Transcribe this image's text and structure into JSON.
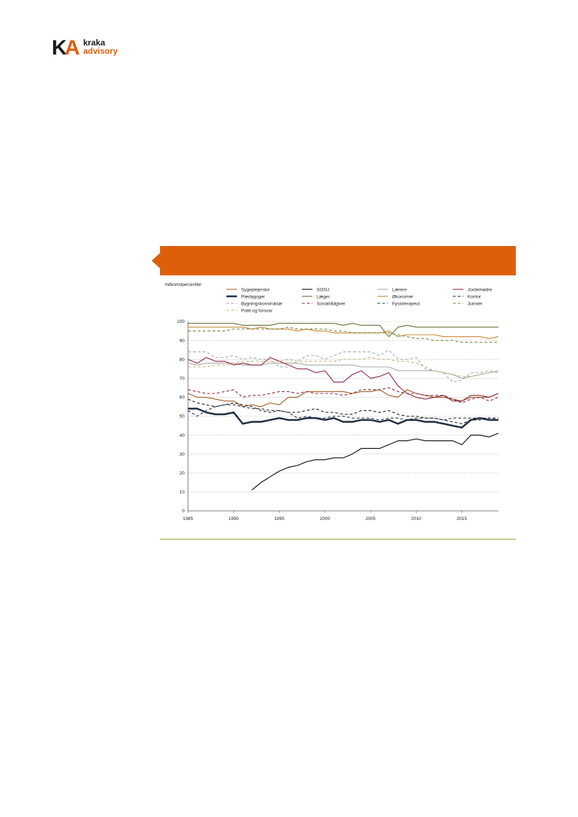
{
  "logo": {
    "mark_k": "K",
    "mark_a": "A",
    "line1": "kraka",
    "line2": "advisory"
  },
  "chart_data": {
    "type": "line",
    "title": "",
    "ylabel": "Indkomstpercentiler",
    "xlabel": "",
    "xlim": [
      1985,
      2019
    ],
    "ylim": [
      0,
      100
    ],
    "xticks": [
      1985,
      1990,
      1995,
      2000,
      2005,
      2010,
      2015
    ],
    "yticks": [
      0,
      10,
      20,
      30,
      40,
      50,
      60,
      70,
      80,
      90,
      100
    ],
    "grid": "horizontal dotted",
    "legend_position": "top",
    "x": [
      1985,
      1986,
      1987,
      1988,
      1989,
      1990,
      1991,
      1992,
      1993,
      1994,
      1995,
      1996,
      1997,
      1998,
      1999,
      2000,
      2001,
      2002,
      2003,
      2004,
      2005,
      2006,
      2007,
      2008,
      2009,
      2010,
      2011,
      2012,
      2013,
      2014,
      2015,
      2016,
      2017,
      2018,
      2019
    ],
    "series": [
      {
        "name": "Sygeplejerske",
        "color": "#9c5a1c",
        "dash": "solid",
        "width": 1.1,
        "values": [
          62,
          60,
          60,
          59,
          58,
          58,
          55,
          56,
          55,
          57,
          56,
          60,
          60,
          63,
          63,
          63,
          63,
          63,
          62,
          63,
          63,
          64,
          61,
          60,
          64,
          62,
          61,
          60,
          60,
          59,
          58,
          60,
          60,
          60,
          62
        ]
      },
      {
        "name": "SOSU",
        "color": "#000000",
        "dash": "solid",
        "width": 1.1,
        "values": [
          null,
          null,
          null,
          null,
          null,
          null,
          null,
          11,
          15,
          18,
          21,
          23,
          24,
          26,
          27,
          27,
          28,
          28,
          30,
          33,
          33,
          33,
          35,
          37,
          37,
          38,
          37,
          37,
          37,
          37,
          35,
          40,
          40,
          39,
          41
        ]
      },
      {
        "name": "Lærere",
        "color": "#a6a6a6",
        "dash": "solid",
        "width": 1.1,
        "values": [
          78,
          77,
          78,
          78,
          78,
          78,
          77,
          77,
          77,
          78,
          78,
          78,
          78,
          77,
          77,
          77,
          77,
          77,
          77,
          76,
          76,
          76,
          76,
          74,
          74,
          74,
          74,
          74,
          73,
          72,
          70,
          71,
          72,
          73,
          74
        ]
      },
      {
        "name": "Jordemødre",
        "color": "#8b2240",
        "dash": "solid",
        "width": 1.1,
        "values": [
          80,
          78,
          81,
          79,
          79,
          77,
          78,
          77,
          77,
          81,
          79,
          77,
          75,
          75,
          73,
          74,
          68,
          68,
          72,
          74,
          70,
          71,
          73,
          66,
          62,
          60,
          59,
          60,
          61,
          58,
          58,
          61,
          61,
          60,
          62
        ]
      },
      {
        "name": "Pædagoger",
        "color": "#233047",
        "dash": "solid",
        "width": 2.6,
        "values": [
          54,
          54,
          52,
          51,
          51,
          52,
          46,
          47,
          47,
          48,
          49,
          48,
          48,
          49,
          49,
          48,
          49,
          47,
          47,
          48,
          48,
          47,
          48,
          46,
          48,
          48,
          47,
          47,
          46,
          45,
          44,
          48,
          49,
          48,
          48
        ]
      },
      {
        "name": "Læger",
        "color": "#6a6a32",
        "dash": "solid",
        "width": 1.1,
        "values": [
          99,
          99,
          99,
          99,
          99,
          99,
          98,
          98,
          98,
          98,
          99,
          99,
          99,
          99,
          99,
          99,
          99,
          98,
          99,
          98,
          98,
          98,
          92,
          97,
          98,
          97,
          97,
          97,
          97,
          97,
          97,
          97,
          97,
          97,
          97
        ]
      },
      {
        "name": "Økonomer",
        "color": "#c8842e",
        "dash": "solid",
        "width": 1.1,
        "values": [
          97,
          97,
          97,
          97,
          97,
          97,
          97,
          96,
          97,
          96,
          96,
          96,
          95,
          96,
          95,
          95,
          94,
          94,
          94,
          94,
          94,
          94,
          95,
          92,
          93,
          93,
          93,
          93,
          92,
          92,
          92,
          92,
          92,
          91,
          92
        ]
      },
      {
        "name": "Kontor",
        "color": "#1a1a1a",
        "dash": "4,3",
        "width": 1.1,
        "values": [
          59,
          57,
          56,
          55,
          56,
          57,
          56,
          55,
          53,
          52,
          53,
          52,
          52,
          53,
          54,
          52,
          52,
          51,
          51,
          53,
          53,
          52,
          53,
          51,
          50,
          50,
          49,
          49,
          48,
          47,
          46,
          48,
          48,
          49,
          49
        ]
      },
      {
        "name": "Bygningskonstruktør",
        "color": "#a8a8a8",
        "dash": "4,3",
        "width": 1.1,
        "values": [
          84,
          84,
          84,
          81,
          81,
          82,
          80,
          81,
          80,
          80,
          76,
          76,
          79,
          82,
          82,
          80,
          82,
          84,
          84,
          84,
          84,
          82,
          85,
          80,
          80,
          81,
          75,
          74,
          73,
          68,
          69,
          73,
          73,
          74,
          73
        ]
      },
      {
        "name": "Socialrådgiver",
        "color": "#8b2240",
        "dash": "4,3",
        "width": 1.1,
        "values": [
          64,
          63,
          62,
          62,
          63,
          64,
          60,
          61,
          61,
          62,
          63,
          63,
          62,
          63,
          62,
          62,
          62,
          61,
          62,
          64,
          64,
          64,
          65,
          63,
          62,
          62,
          61,
          61,
          61,
          59,
          57,
          59,
          60,
          58,
          60
        ]
      },
      {
        "name": "Fysioterapeut",
        "color": "#233047",
        "dash": "4,3",
        "width": 1.1,
        "values": [
          53,
          50,
          53,
          55,
          56,
          56,
          55,
          54,
          54,
          53,
          53,
          52,
          49,
          50,
          49,
          49,
          50,
          50,
          49,
          49,
          49,
          48,
          49,
          49,
          48,
          49,
          49,
          49,
          48,
          49,
          49,
          49,
          49,
          49,
          48
        ]
      },
      {
        "name": "Jurister",
        "color": "#6d8b3a",
        "dash": "4,3",
        "width": 1.1,
        "values": [
          95,
          95,
          95,
          95,
          95,
          96,
          96,
          96,
          96,
          96,
          96,
          97,
          96,
          96,
          96,
          96,
          95,
          95,
          94,
          94,
          94,
          94,
          94,
          93,
          92,
          91,
          91,
          90,
          90,
          90,
          89,
          89,
          89,
          89,
          89
        ]
      },
      {
        "name": "Politi og forsvar",
        "color": "#c9b27a",
        "dash": "4,3",
        "width": 1.1,
        "values": [
          76,
          76,
          76,
          77,
          77,
          78,
          79,
          79,
          79,
          79,
          79,
          80,
          79,
          79,
          79,
          79,
          79,
          80,
          80,
          80,
          81,
          80,
          80,
          79,
          79,
          78,
          76,
          74,
          73,
          72,
          71,
          71,
          72,
          73,
          74
        ]
      }
    ]
  }
}
